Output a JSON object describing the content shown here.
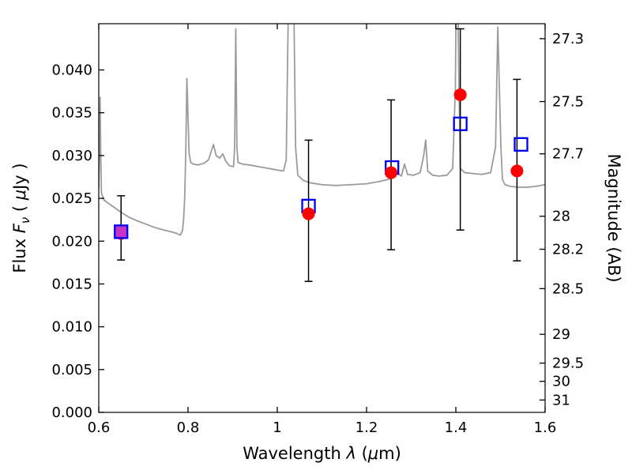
{
  "figure": {
    "background": "#ffffff",
    "frame_color": "#000000"
  },
  "chart_data": {
    "type": "line+scatter",
    "title": "",
    "axes": {
      "xlabel": "Wavelength λ (μm)",
      "xlabel_parts": [
        {
          "t": "Wavelength  ",
          "s": "n"
        },
        {
          "t": "λ",
          "s": "i"
        },
        {
          "t": " (",
          "s": "n"
        },
        {
          "t": "μ",
          "s": "i"
        },
        {
          "t": "m)",
          "s": "n"
        }
      ],
      "ylabel_left": "Flux Fν ( μJy )",
      "ylabel_left_parts": [
        {
          "t": "Flux  ",
          "s": "n"
        },
        {
          "t": "F",
          "s": "i"
        },
        {
          "t": "ν",
          "s": "isub"
        },
        {
          "t": "  ( ",
          "s": "n"
        },
        {
          "t": "μ",
          "s": "i"
        },
        {
          "t": "Jy )",
          "s": "n"
        }
      ],
      "ylabel_right": "Magnitude (AB)",
      "xlim": [
        0.6,
        1.6
      ],
      "ylim": [
        0,
        0.0454
      ],
      "grid": false,
      "legend": false,
      "x_ticks": {
        "values": [
          0.6,
          0.8,
          1.0,
          1.2,
          1.4,
          1.6
        ],
        "labels": [
          "0.6",
          "0.8",
          "1",
          "1.2",
          "1.4",
          "1.6"
        ]
      },
      "y_ticks_left": {
        "values": [
          0.0,
          0.005,
          0.01,
          0.015,
          0.02,
          0.025,
          0.03,
          0.035,
          0.04
        ],
        "labels": [
          "0.000",
          "0.005",
          "0.010",
          "0.015",
          "0.020",
          "0.025",
          "0.030",
          "0.035",
          "0.040"
        ]
      },
      "y_ticks_right": {
        "values": [
          27.3,
          27.5,
          27.7,
          28,
          28.2,
          28.5,
          29,
          29.5,
          30,
          31
        ],
        "labels": [
          "27.3",
          "27.5",
          "27.7",
          "28",
          "28.2",
          "28.5",
          "29",
          "29.5",
          "30",
          "31"
        ],
        "ab_zeropoint": 23.9
      }
    },
    "series": [
      {
        "name": "galaxy-spectrum-model",
        "kind": "line",
        "color": "#9b9b9b",
        "linewidth": 1.8,
        "points": [
          [
            0.6,
            0.0262
          ],
          [
            0.6015,
            0.03
          ],
          [
            0.603,
            0.0368
          ],
          [
            0.6045,
            0.03
          ],
          [
            0.606,
            0.0256
          ],
          [
            0.612,
            0.0248
          ],
          [
            0.622,
            0.0244
          ],
          [
            0.636,
            0.0239
          ],
          [
            0.652,
            0.0233
          ],
          [
            0.668,
            0.0228
          ],
          [
            0.685,
            0.0224
          ],
          [
            0.705,
            0.022
          ],
          [
            0.725,
            0.0216
          ],
          [
            0.745,
            0.0213
          ],
          [
            0.762,
            0.0211
          ],
          [
            0.775,
            0.0209
          ],
          [
            0.7825,
            0.0207
          ],
          [
            0.7875,
            0.0212
          ],
          [
            0.79,
            0.0225
          ],
          [
            0.7925,
            0.025
          ],
          [
            0.795,
            0.0305
          ],
          [
            0.7975,
            0.039
          ],
          [
            0.8,
            0.0345
          ],
          [
            0.8025,
            0.0302
          ],
          [
            0.806,
            0.0292
          ],
          [
            0.812,
            0.029
          ],
          [
            0.822,
            0.0289
          ],
          [
            0.836,
            0.0291
          ],
          [
            0.846,
            0.0295
          ],
          [
            0.852,
            0.0305
          ],
          [
            0.857,
            0.0313
          ],
          [
            0.863,
            0.03
          ],
          [
            0.871,
            0.0297
          ],
          [
            0.878,
            0.0302
          ],
          [
            0.884,
            0.0294
          ],
          [
            0.893,
            0.0288
          ],
          [
            0.902,
            0.0287
          ],
          [
            0.9045,
            0.031
          ],
          [
            0.907,
            0.0448
          ],
          [
            0.9095,
            0.031
          ],
          [
            0.912,
            0.0292
          ],
          [
            0.922,
            0.029
          ],
          [
            0.938,
            0.0289
          ],
          [
            0.958,
            0.0287
          ],
          [
            0.98,
            0.0285
          ],
          [
            1.0,
            0.0283
          ],
          [
            1.014,
            0.0282
          ],
          [
            1.02,
            0.0295
          ],
          [
            1.026,
            0.052
          ],
          [
            1.031,
            0.056
          ],
          [
            1.0365,
            0.05
          ],
          [
            1.041,
            0.031
          ],
          [
            1.046,
            0.0277
          ],
          [
            1.058,
            0.0271
          ],
          [
            1.075,
            0.0268
          ],
          [
            1.1,
            0.0266
          ],
          [
            1.13,
            0.0265
          ],
          [
            1.165,
            0.0266
          ],
          [
            1.2,
            0.0267
          ],
          [
            1.232,
            0.027
          ],
          [
            1.255,
            0.0273
          ],
          [
            1.268,
            0.028
          ],
          [
            1.278,
            0.0276
          ],
          [
            1.285,
            0.029
          ],
          [
            1.292,
            0.0278
          ],
          [
            1.305,
            0.0277
          ],
          [
            1.32,
            0.028
          ],
          [
            1.328,
            0.03
          ],
          [
            1.3325,
            0.0318
          ],
          [
            1.337,
            0.0282
          ],
          [
            1.348,
            0.0277
          ],
          [
            1.362,
            0.0276
          ],
          [
            1.38,
            0.0277
          ],
          [
            1.393,
            0.0285
          ],
          [
            1.399,
            0.038
          ],
          [
            1.402,
            0.056
          ],
          [
            1.4045,
            0.048
          ],
          [
            1.407,
            0.038
          ],
          [
            1.41,
            0.0285
          ],
          [
            1.42,
            0.028
          ],
          [
            1.438,
            0.0279
          ],
          [
            1.458,
            0.0278
          ],
          [
            1.478,
            0.028
          ],
          [
            1.489,
            0.031
          ],
          [
            1.494,
            0.045
          ],
          [
            1.4975,
            0.038
          ],
          [
            1.501,
            0.031
          ],
          [
            1.5045,
            0.0272
          ],
          [
            1.51,
            0.0266
          ],
          [
            1.522,
            0.0264
          ],
          [
            1.54,
            0.0263
          ],
          [
            1.56,
            0.0263
          ],
          [
            1.58,
            0.0264
          ],
          [
            1.6,
            0.0266
          ]
        ]
      },
      {
        "name": "observed-photometry",
        "kind": "scatter",
        "marker": "circle",
        "color": "#ff0000",
        "marker_radius": 8,
        "error_color": "#000000",
        "points": [
          {
            "x": 0.65,
            "y": 0.0209,
            "err_lo": 0.0178,
            "err_hi": 0.0253
          },
          {
            "x": 1.07,
            "y": 0.0232,
            "err_lo": 0.0153,
            "err_hi": 0.0318
          },
          {
            "x": 1.255,
            "y": 0.028,
            "err_lo": 0.019,
            "err_hi": 0.0365
          },
          {
            "x": 1.41,
            "y": 0.0371,
            "err_lo": 0.0213,
            "err_hi": 0.0448
          },
          {
            "x": 1.537,
            "y": 0.0282,
            "err_lo": 0.0177,
            "err_hi": 0.0389
          }
        ]
      },
      {
        "name": "model-photometry",
        "kind": "scatter",
        "marker": "square-open",
        "color": "#0000ee",
        "marker_half": 8,
        "points": [
          {
            "x": 0.65,
            "y": 0.0211,
            "fill": "#c634c6"
          },
          {
            "x": 1.07,
            "y": 0.0241
          },
          {
            "x": 1.257,
            "y": 0.0286
          },
          {
            "x": 1.41,
            "y": 0.0337
          },
          {
            "x": 1.546,
            "y": 0.0313
          }
        ]
      }
    ]
  }
}
